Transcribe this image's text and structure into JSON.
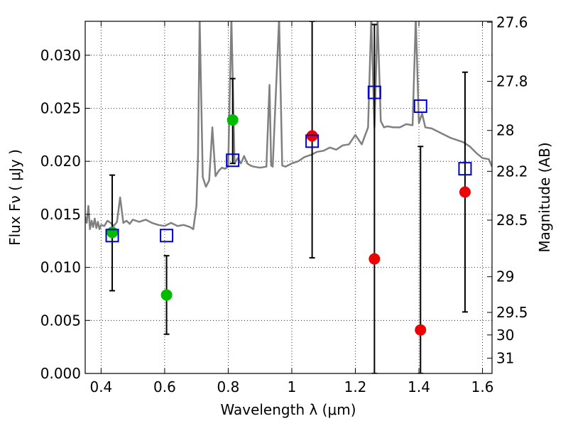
{
  "chart_data": {
    "type": "scatter",
    "xlabel": "Wavelength  λ (μm)",
    "ylabel": "Flux  Fν  ( μJy )",
    "ylabel_right": "Magnitude (AB)",
    "xlim": [
      0.35,
      1.63
    ],
    "ylim": [
      0.0,
      0.0332
    ],
    "grid": true,
    "x_ticks": [
      0.4,
      0.6,
      0.8,
      1.0,
      1.2,
      1.4,
      1.6
    ],
    "x_tick_labels": [
      "0.4",
      "0.6",
      "0.8",
      "1",
      "1.2",
      "1.4",
      "1.6"
    ],
    "y_ticks": [
      0.0,
      0.005,
      0.01,
      0.015,
      0.02,
      0.025,
      0.03
    ],
    "y_tick_labels": [
      "0.000",
      "0.005",
      "0.010",
      "0.015",
      "0.020",
      "0.025",
      "0.030"
    ],
    "right_ticks": [
      {
        "mag": 27.6,
        "label": "27.6"
      },
      {
        "mag": 27.8,
        "label": "27.8"
      },
      {
        "mag": 28.0,
        "label": "28"
      },
      {
        "mag": 28.2,
        "label": "28.2"
      },
      {
        "mag": 28.5,
        "label": "28.5"
      },
      {
        "mag": 29.0,
        "label": "29"
      },
      {
        "mag": 29.5,
        "label": "29.5"
      },
      {
        "mag": 30.0,
        "label": "30"
      },
      {
        "mag": 31.0,
        "label": "31"
      }
    ],
    "template_spectrum": {
      "color": "#808080",
      "x": [
        0.35,
        0.355,
        0.36,
        0.365,
        0.37,
        0.375,
        0.38,
        0.385,
        0.39,
        0.395,
        0.4,
        0.41,
        0.42,
        0.43,
        0.44,
        0.45,
        0.46,
        0.47,
        0.48,
        0.49,
        0.5,
        0.52,
        0.54,
        0.56,
        0.58,
        0.6,
        0.62,
        0.64,
        0.66,
        0.68,
        0.69,
        0.7,
        0.705,
        0.71,
        0.72,
        0.73,
        0.74,
        0.75,
        0.76,
        0.77,
        0.78,
        0.79,
        0.8,
        0.81,
        0.82,
        0.83,
        0.84,
        0.85,
        0.86,
        0.87,
        0.88,
        0.9,
        0.92,
        0.93,
        0.935,
        0.94,
        0.96,
        0.97,
        0.98,
        1.0,
        1.02,
        1.04,
        1.06,
        1.08,
        1.1,
        1.12,
        1.14,
        1.16,
        1.18,
        1.2,
        1.22,
        1.24,
        1.25,
        1.26,
        1.27,
        1.28,
        1.29,
        1.3,
        1.32,
        1.34,
        1.36,
        1.38,
        1.39,
        1.4,
        1.41,
        1.42,
        1.44,
        1.46,
        1.48,
        1.5,
        1.52,
        1.54,
        1.56,
        1.58,
        1.6,
        1.62,
        1.63
      ],
      "y": [
        0.0148,
        0.0142,
        0.0158,
        0.0136,
        0.0144,
        0.0138,
        0.0146,
        0.0137,
        0.0143,
        0.0136,
        0.014,
        0.0139,
        0.0144,
        0.0142,
        0.0139,
        0.0143,
        0.0166,
        0.0142,
        0.0144,
        0.0141,
        0.0145,
        0.0143,
        0.0145,
        0.0142,
        0.014,
        0.0139,
        0.0142,
        0.0139,
        0.014,
        0.0138,
        0.0136,
        0.0158,
        0.0205,
        0.0335,
        0.0185,
        0.0176,
        0.0182,
        0.0232,
        0.0186,
        0.0191,
        0.0194,
        0.0193,
        0.0195,
        0.0335,
        0.0198,
        0.0203,
        0.0198,
        0.0205,
        0.0198,
        0.0196,
        0.0195,
        0.0194,
        0.0195,
        0.0272,
        0.0196,
        0.0195,
        0.0335,
        0.0196,
        0.0195,
        0.0198,
        0.02,
        0.0204,
        0.0206,
        0.0209,
        0.021,
        0.0213,
        0.0211,
        0.0215,
        0.0216,
        0.0225,
        0.0216,
        0.0232,
        0.0335,
        0.0232,
        0.0335,
        0.0238,
        0.0232,
        0.0233,
        0.0232,
        0.0232,
        0.0235,
        0.0234,
        0.0335,
        0.0236,
        0.0245,
        0.0232,
        0.0231,
        0.0228,
        0.0225,
        0.0222,
        0.022,
        0.0218,
        0.0214,
        0.0208,
        0.0203,
        0.0202,
        0.0195
      ]
    },
    "observed_green": {
      "color": "#00bb00",
      "points": [
        {
          "x": 0.435,
          "y": 0.0133
        },
        {
          "x": 0.606,
          "y": 0.0074
        },
        {
          "x": 0.814,
          "y": 0.0239
        }
      ]
    },
    "observed_red": {
      "color": "#ee0000",
      "points": [
        {
          "x": 1.064,
          "y": 0.0224
        },
        {
          "x": 1.26,
          "y": 0.0108
        },
        {
          "x": 1.405,
          "y": 0.0041
        },
        {
          "x": 1.545,
          "y": 0.0171
        }
      ]
    },
    "model_squares": {
      "color": "#0000cc",
      "points": [
        {
          "x": 0.435,
          "y": 0.013
        },
        {
          "x": 0.606,
          "y": 0.013
        },
        {
          "x": 0.814,
          "y": 0.0201
        },
        {
          "x": 1.064,
          "y": 0.0219
        },
        {
          "x": 1.26,
          "y": 0.0265
        },
        {
          "x": 1.405,
          "y": 0.0252
        },
        {
          "x": 1.545,
          "y": 0.0193
        }
      ]
    },
    "error_bars": [
      {
        "x": 0.435,
        "low": 0.0078,
        "high": 0.0187
      },
      {
        "x": 0.606,
        "low": 0.0037,
        "high": 0.0111
      },
      {
        "x": 0.814,
        "low": 0.0198,
        "high": 0.0278
      },
      {
        "x": 1.064,
        "low": 0.0109,
        "high": 0.0332
      },
      {
        "x": 1.26,
        "low": 0.0,
        "high": 0.0329
      },
      {
        "x": 1.405,
        "low": 0.0,
        "high": 0.0214
      },
      {
        "x": 1.545,
        "low": 0.0058,
        "high": 0.0284
      }
    ]
  }
}
